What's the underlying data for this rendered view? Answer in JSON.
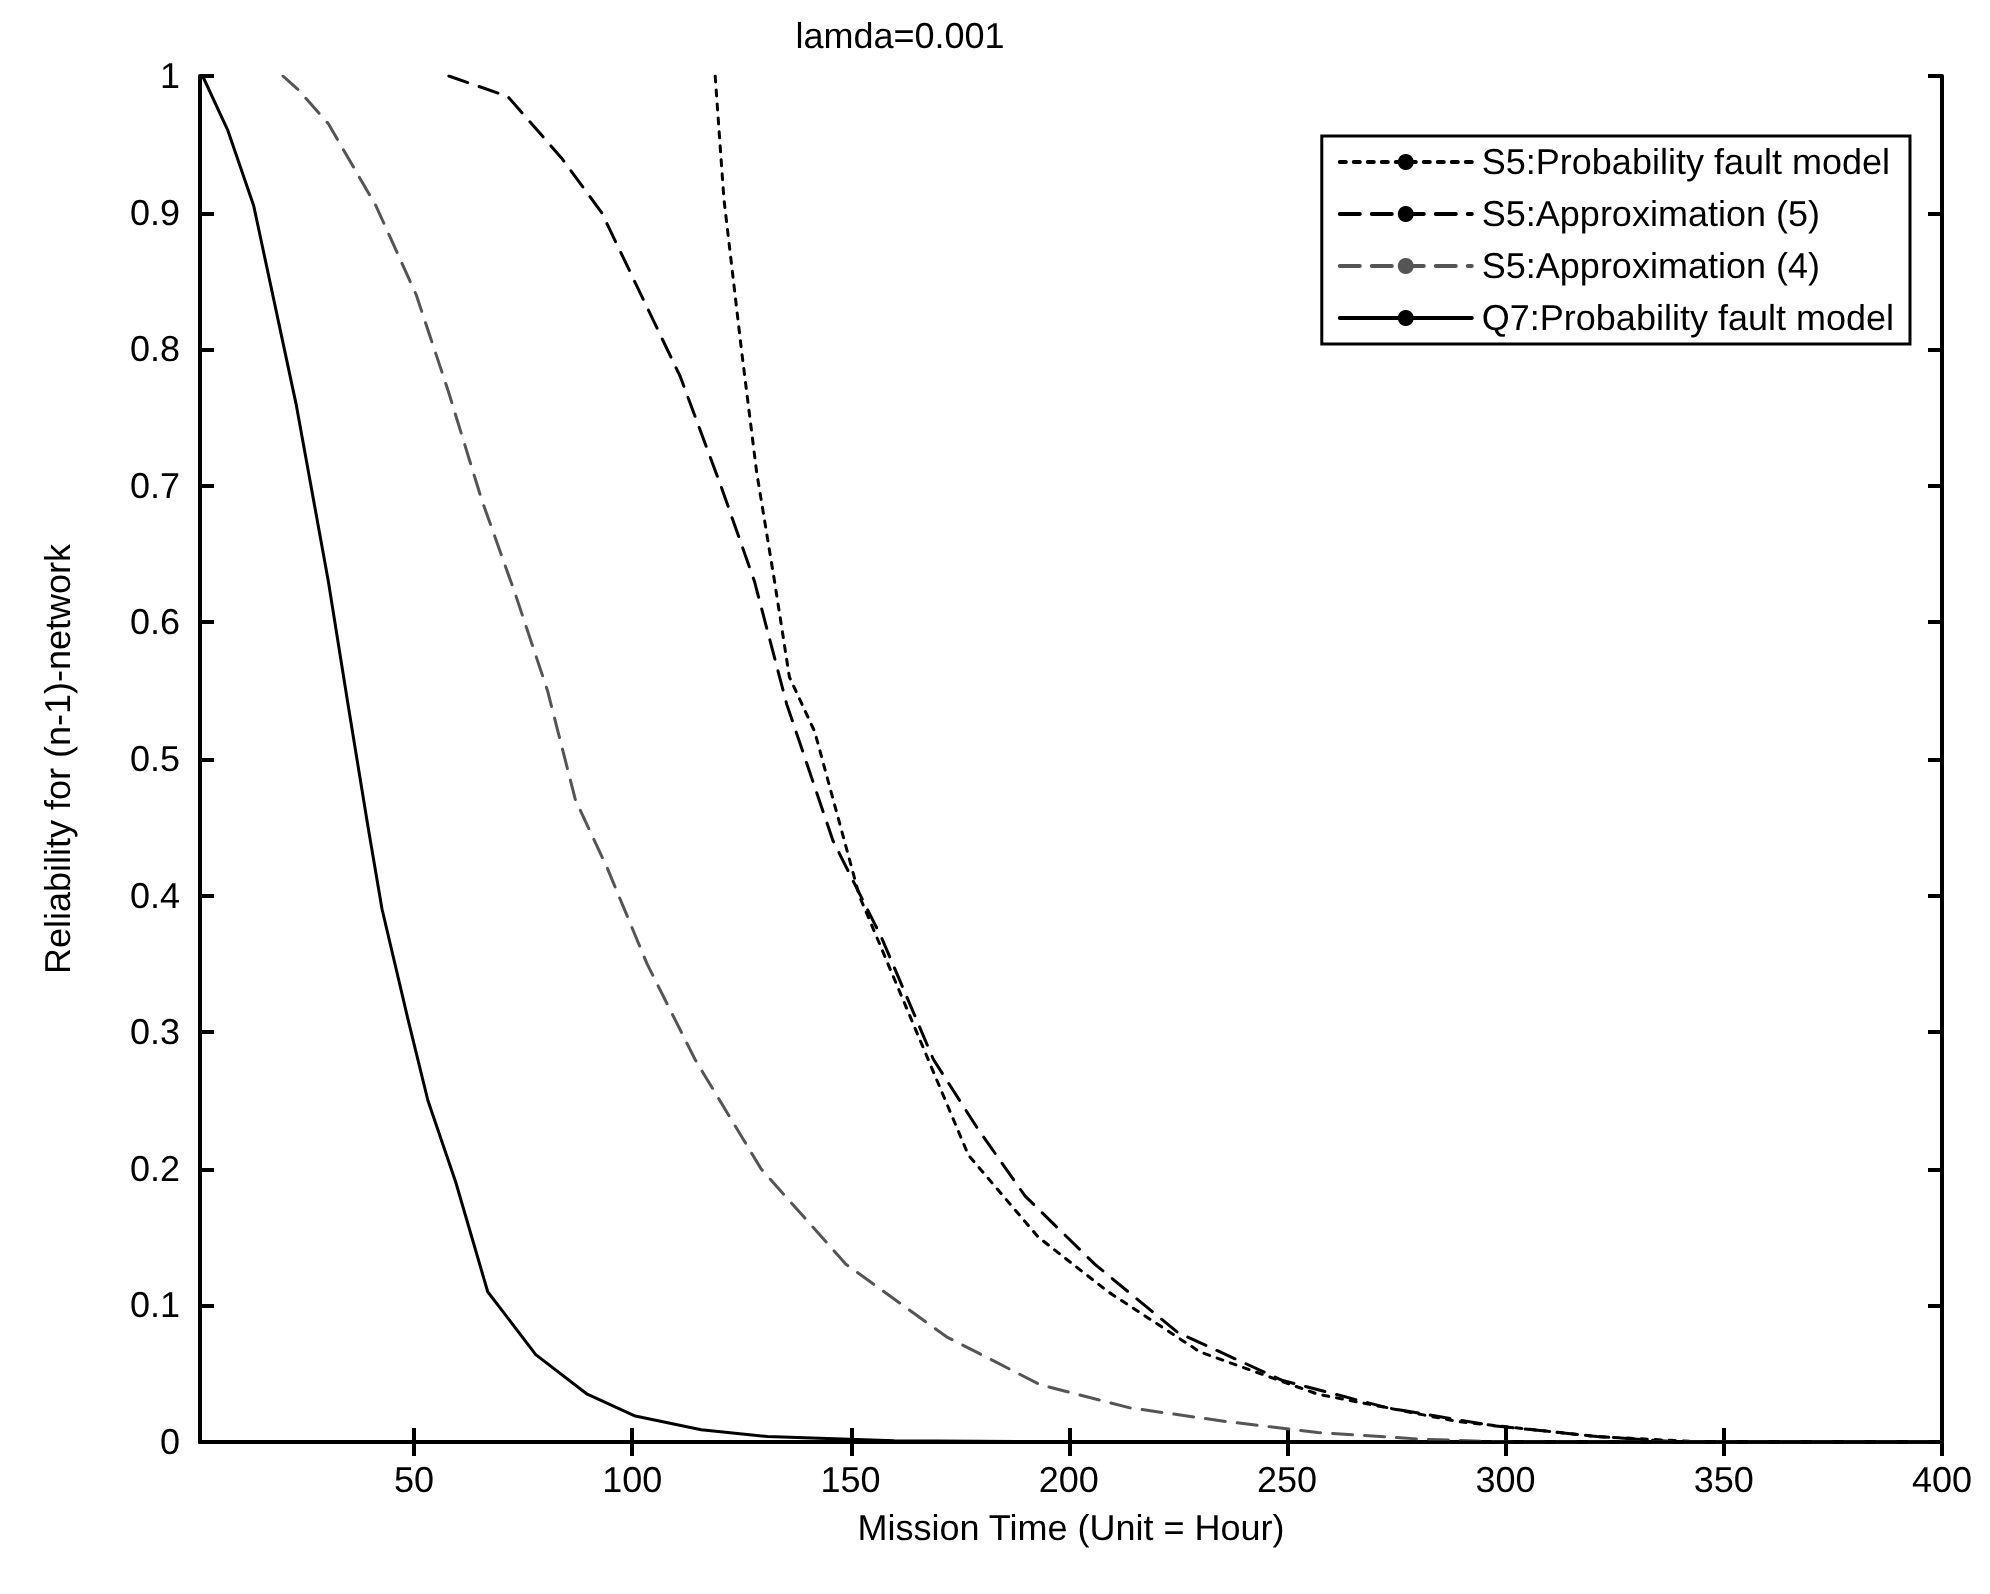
{
  "chart_data": {
    "type": "line",
    "title": "lamda=0.001",
    "xlabel": "Mission Time (Unit = Hour)",
    "ylabel": "Reliability for (n-1)-network",
    "xlim": [
      1,
      400
    ],
    "xticks": [
      50,
      100,
      150,
      200,
      250,
      300,
      350,
      400
    ],
    "ylim": [
      0,
      1
    ],
    "yticks": [
      0,
      0.1,
      0.2,
      0.3,
      0.4,
      0.5,
      0.6,
      0.7,
      0.8,
      0.9,
      1
    ],
    "grid": false,
    "legend": "top right",
    "marker": "none",
    "series": [
      {
        "name": "S5:Probability fault model",
        "color": "#000000",
        "line_style": "dotted",
        "x": [
          119,
          121,
          125,
          128.5,
          132.6,
          136,
          141.8,
          152,
          177,
          193,
          209,
          230,
          257,
          289,
          321,
          345,
          400
        ],
        "values": [
          1,
          0.91,
          0.8,
          0.71,
          0.63,
          0.56,
          0.52,
          0.4,
          0.21,
          0.15,
          0.11,
          0.066,
          0.035,
          0.015,
          0.004,
          0,
          0
        ]
      },
      {
        "name": "S5:Approximation (5)",
        "color": "#000000",
        "line_style": "dashed",
        "x": [
          58,
          71.5,
          83.8,
          93,
          102,
          111,
          120.3,
          128,
          135.4,
          146,
          157,
          169,
          179,
          190,
          206,
          225,
          249,
          273,
          297,
          321,
          340,
          400
        ],
        "values": [
          1,
          0.985,
          0.94,
          0.9,
          0.84,
          0.78,
          0.7,
          0.63,
          0.54,
          0.44,
          0.37,
          0.28,
          0.23,
          0.18,
          0.13,
          0.08,
          0.045,
          0.025,
          0.012,
          0.004,
          0,
          0
        ]
      },
      {
        "name": "S5:Approximation (4)",
        "color": "#555555",
        "line_style": "dashed",
        "x": [
          20,
          23.5,
          30.4,
          41.3,
          50.5,
          57.8,
          65.5,
          73.3,
          80.6,
          87,
          94.3,
          103.4,
          114.4,
          129.5,
          149,
          172,
          193.4,
          214,
          236,
          257,
          281,
          300,
          400
        ],
        "values": [
          1,
          0.99,
          0.965,
          0.905,
          0.84,
          0.77,
          0.69,
          0.62,
          0.55,
          0.47,
          0.42,
          0.35,
          0.28,
          0.2,
          0.13,
          0.077,
          0.042,
          0.025,
          0.015,
          0.007,
          0.002,
          0,
          0
        ]
      },
      {
        "name": "Q7:Probability fault model",
        "color": "#000000",
        "line_style": "solid",
        "x": [
          1.6,
          7.4,
          13.3,
          23,
          30.4,
          34.9,
          39.5,
          42.7,
          48.6,
          53.2,
          59.6,
          66.9,
          77.9,
          89.7,
          100.7,
          115.8,
          131,
          160,
          200,
          400
        ],
        "values": [
          1,
          0.96,
          0.905,
          0.76,
          0.63,
          0.54,
          0.45,
          0.39,
          0.31,
          0.25,
          0.19,
          0.11,
          0.064,
          0.035,
          0.019,
          0.009,
          0.004,
          0.001,
          0,
          0
        ]
      }
    ]
  }
}
